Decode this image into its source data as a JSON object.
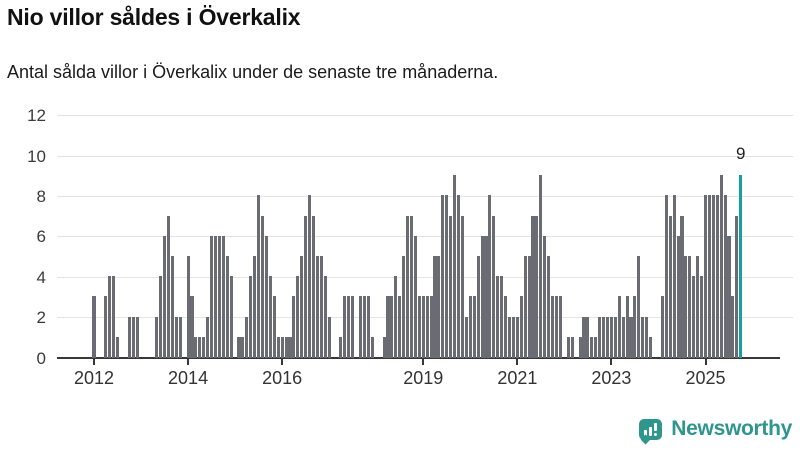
{
  "header": {
    "title": "Nio villor såldes i Överkalix",
    "subtitle": "Antal sålda villor i Överkalix under de senaste tre månaderna."
  },
  "annotation": {
    "label": "9"
  },
  "logo": {
    "text": "Newsworthy",
    "icon": "newsworthy-speech-bubble-bar-chart-icon"
  },
  "colors": {
    "bar": "#6b6b73",
    "highlight": "#13a1a0",
    "gridline": "#e4e4e4",
    "axis": "#383838",
    "logo_teal": "#2f968e"
  },
  "chart_data": {
    "type": "bar",
    "title": "Nio villor såldes i Överkalix",
    "subtitle": "Antal sålda villor i Överkalix under de senaste tre månaderna.",
    "xlabel": "",
    "ylabel": "",
    "ylim": [
      0,
      12
    ],
    "y_ticks": [
      0,
      2,
      4,
      6,
      8,
      10,
      12
    ],
    "grid": "horizontal",
    "start_month": "2011-06",
    "frequency": "monthly",
    "values": [
      0,
      0,
      0,
      0,
      0,
      0,
      0,
      3,
      0,
      0,
      3,
      4,
      4,
      1,
      0,
      0,
      2,
      2,
      2,
      0,
      0,
      0,
      0,
      2,
      4,
      6,
      7,
      5,
      2,
      2,
      0,
      5,
      3,
      1,
      1,
      1,
      2,
      6,
      6,
      6,
      6,
      5,
      4,
      0,
      1,
      1,
      2,
      4,
      5,
      8,
      7,
      6,
      4,
      3,
      1,
      1,
      1,
      1,
      3,
      4,
      5,
      7,
      8,
      7,
      5,
      5,
      4,
      2,
      0,
      0,
      1,
      3,
      3,
      3,
      0,
      3,
      3,
      3,
      1,
      0,
      0,
      1,
      3,
      3,
      4,
      3,
      5,
      7,
      7,
      6,
      3,
      3,
      3,
      3,
      5,
      5,
      8,
      8,
      7,
      9,
      8,
      7,
      2,
      3,
      3,
      5,
      6,
      6,
      8,
      7,
      4,
      4,
      3,
      2,
      2,
      2,
      3,
      5,
      5,
      7,
      7,
      9,
      6,
      5,
      3,
      3,
      3,
      0,
      1,
      1,
      0,
      1,
      2,
      2,
      1,
      1,
      2,
      2,
      2,
      2,
      2,
      3,
      2,
      3,
      2,
      3,
      5,
      2,
      2,
      1,
      0,
      0,
      3,
      8,
      7,
      8,
      6,
      7,
      5,
      5,
      4,
      5,
      4,
      8,
      8,
      8,
      8,
      9,
      8,
      6,
      3,
      7,
      9
    ],
    "x_ticks": [
      {
        "label": "2012",
        "month_index": 7
      },
      {
        "label": "2014",
        "month_index": 31
      },
      {
        "label": "2016",
        "month_index": 55
      },
      {
        "label": "2019",
        "month_index": 91
      },
      {
        "label": "2021",
        "month_index": 115
      },
      {
        "label": "2023",
        "month_index": 139
      },
      {
        "label": "2025",
        "month_index": 163
      }
    ],
    "highlight": {
      "index": 172,
      "value": 9,
      "label": "9"
    },
    "legend": "none"
  }
}
